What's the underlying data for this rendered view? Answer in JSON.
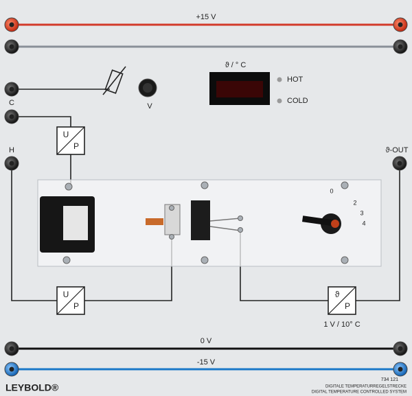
{
  "rails": {
    "top": "+15 V",
    "zero": "0 V",
    "bottom": "-15 V"
  },
  "display": {
    "label": "ϑ / ° C",
    "hot": "HOT",
    "cold": "COLD"
  },
  "sockets": {
    "c": "C",
    "h": "H",
    "out": "ϑ-OUT"
  },
  "potentiometer": "V",
  "converters": [
    {
      "top": "U",
      "bottom": "P"
    },
    {
      "top": "U",
      "bottom": "P"
    },
    {
      "top": "ϑ",
      "bottom": "P",
      "caption": "1 V / 10° C"
    }
  ],
  "dial": [
    "0",
    "2",
    "3",
    "4"
  ],
  "footer": {
    "brand": "LEYBOLD®",
    "number": "734 121",
    "title_de": "DIGITALE TEMPERATURREGELSTRECKE",
    "title_en": "DIGITAL TEMPERATURE CONTROLLED SYSTEM"
  }
}
